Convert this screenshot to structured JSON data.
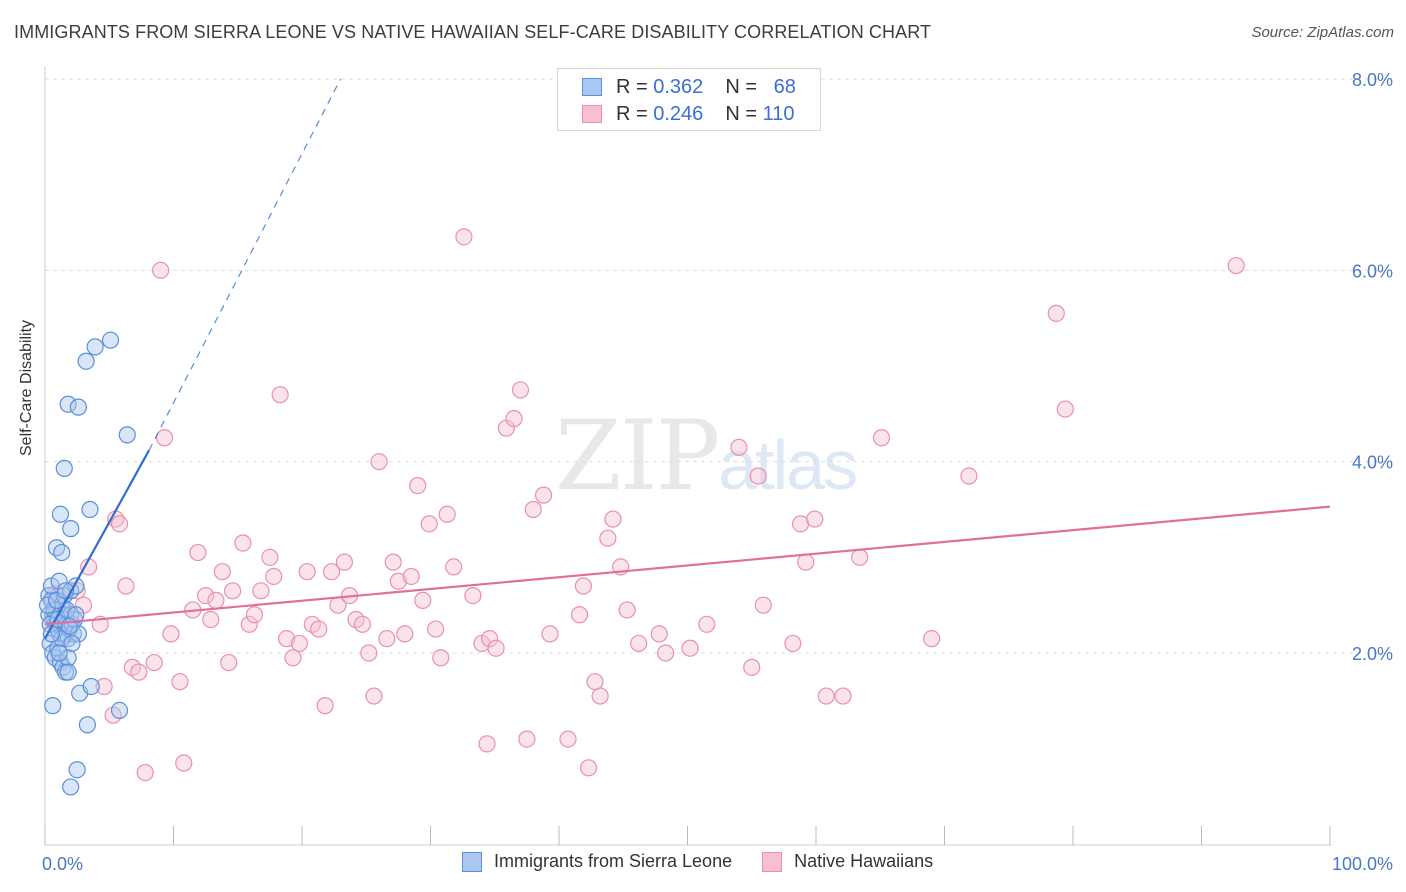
{
  "title": "IMMIGRANTS FROM SIERRA LEONE VS NATIVE HAWAIIAN SELF-CARE DISABILITY CORRELATION CHART",
  "source": "Source: ZipAtlas.com",
  "watermark": {
    "zip": "ZIP",
    "atlas": "atlas"
  },
  "legend_top": [
    {
      "r_label": "R =",
      "r_value": "0.362",
      "n_label": "N =",
      "n_value": "68"
    },
    {
      "r_label": "R =",
      "r_value": "0.246",
      "n_label": "N =",
      "n_value": "110"
    }
  ],
  "legend_bottom": [
    "Immigrants from Sierra Leone",
    "Native Hawaiians"
  ],
  "colors": {
    "blue_fill": "#aac8f0",
    "blue_stroke": "#5b8fd8",
    "blue_line": "#2f6fd1",
    "pink_fill": "#f6c0d2",
    "pink_stroke": "#e890ad",
    "pink_line": "#e07099",
    "grid": "#dddddd",
    "tick_text": "#4a78c8"
  },
  "chart_data": {
    "type": "scatter",
    "title": "IMMIGRANTS FROM SIERRA LEONE VS NATIVE HAWAIIAN SELF-CARE DISABILITY CORRELATION CHART",
    "xlabel": "",
    "ylabel": "Self-Care Disability",
    "xlim": [
      0,
      100
    ],
    "ylim": [
      0.0,
      8.2
    ],
    "x_ticks": [
      "0.0%",
      "100.0%"
    ],
    "y_ticks": [
      {
        "v": 2.0,
        "label": "2.0%"
      },
      {
        "v": 4.0,
        "label": "4.0%"
      },
      {
        "v": 6.0,
        "label": "6.0%"
      },
      {
        "v": 8.0,
        "label": "8.0%"
      }
    ],
    "series": [
      {
        "name": "Immigrants from Sierra Leone",
        "color": "blue",
        "trend": {
          "x0": 0.0,
          "y0": 2.15,
          "x1": 8.1,
          "y1": 4.12,
          "dash_x1": 23.0,
          "dash_y1": 8.0
        },
        "points": [
          [
            0.3,
            2.6
          ],
          [
            0.5,
            2.55
          ],
          [
            0.6,
            2.4
          ],
          [
            0.7,
            2.35
          ],
          [
            0.8,
            2.3
          ],
          [
            0.9,
            2.45
          ],
          [
            1.0,
            2.25
          ],
          [
            1.1,
            2.2
          ],
          [
            1.2,
            2.3
          ],
          [
            1.3,
            2.5
          ],
          [
            1.4,
            2.35
          ],
          [
            1.5,
            2.4
          ],
          [
            1.6,
            2.2
          ],
          [
            1.7,
            2.3
          ],
          [
            1.8,
            2.15
          ],
          [
            1.9,
            2.25
          ],
          [
            2.0,
            2.4
          ],
          [
            2.1,
            2.3
          ],
          [
            2.2,
            2.2
          ],
          [
            2.3,
            2.35
          ],
          [
            0.4,
            2.1
          ],
          [
            0.6,
            2.0
          ],
          [
            0.8,
            1.95
          ],
          [
            1.0,
            2.05
          ],
          [
            1.2,
            1.9
          ],
          [
            1.4,
            1.85
          ],
          [
            1.6,
            1.8
          ],
          [
            1.8,
            1.95
          ],
          [
            0.5,
            2.7
          ],
          [
            1.1,
            2.75
          ],
          [
            1.5,
            2.6
          ],
          [
            2.0,
            2.65
          ],
          [
            2.4,
            2.7
          ],
          [
            2.6,
            2.2
          ],
          [
            0.9,
            3.1
          ],
          [
            1.3,
            3.05
          ],
          [
            2.0,
            3.3
          ],
          [
            1.2,
            3.45
          ],
          [
            3.5,
            3.5
          ],
          [
            1.5,
            3.93
          ],
          [
            6.4,
            4.28
          ],
          [
            1.8,
            4.6
          ],
          [
            2.6,
            4.57
          ],
          [
            3.2,
            5.05
          ],
          [
            3.9,
            5.2
          ],
          [
            5.1,
            5.27
          ],
          [
            0.6,
            1.45
          ],
          [
            1.8,
            1.8
          ],
          [
            2.7,
            1.58
          ],
          [
            3.3,
            1.25
          ],
          [
            5.8,
            1.4
          ],
          [
            2.5,
            0.78
          ],
          [
            2.0,
            0.6
          ],
          [
            3.6,
            1.65
          ],
          [
            0.3,
            2.4
          ],
          [
            0.4,
            2.3
          ],
          [
            0.7,
            2.45
          ],
          [
            1.0,
            2.35
          ],
          [
            1.3,
            2.15
          ],
          [
            1.7,
            2.45
          ],
          [
            2.1,
            2.1
          ],
          [
            0.2,
            2.5
          ],
          [
            0.9,
            2.55
          ],
          [
            1.6,
            2.65
          ],
          [
            0.5,
            2.2
          ],
          [
            1.1,
            2.0
          ],
          [
            2.4,
            2.4
          ],
          [
            1.9,
            2.28
          ]
        ]
      },
      {
        "name": "Native Hawaiians",
        "color": "pink",
        "trend": {
          "x0": 0.0,
          "y0": 2.3,
          "x1": 100.0,
          "y1": 3.53
        },
        "points": [
          [
            0.5,
            2.55
          ],
          [
            1.0,
            2.6
          ],
          [
            1.5,
            2.45
          ],
          [
            2.5,
            2.65
          ],
          [
            3.0,
            2.5
          ],
          [
            3.4,
            2.9
          ],
          [
            4.3,
            2.3
          ],
          [
            4.6,
            1.65
          ],
          [
            5.3,
            1.35
          ],
          [
            5.5,
            3.4
          ],
          [
            5.8,
            3.35
          ],
          [
            6.3,
            2.7
          ],
          [
            6.8,
            1.85
          ],
          [
            7.3,
            1.8
          ],
          [
            7.8,
            0.75
          ],
          [
            8.5,
            1.9
          ],
          [
            9.0,
            6.0
          ],
          [
            9.3,
            4.25
          ],
          [
            9.8,
            2.2
          ],
          [
            10.5,
            1.7
          ],
          [
            10.8,
            0.85
          ],
          [
            11.5,
            2.45
          ],
          [
            11.9,
            3.05
          ],
          [
            12.5,
            2.6
          ],
          [
            12.9,
            2.35
          ],
          [
            13.3,
            2.55
          ],
          [
            13.8,
            2.85
          ],
          [
            14.3,
            1.9
          ],
          [
            14.6,
            2.65
          ],
          [
            15.4,
            3.15
          ],
          [
            15.9,
            2.3
          ],
          [
            16.3,
            2.4
          ],
          [
            16.8,
            2.65
          ],
          [
            17.5,
            3.0
          ],
          [
            17.8,
            2.8
          ],
          [
            18.3,
            4.7
          ],
          [
            18.8,
            2.15
          ],
          [
            19.3,
            1.95
          ],
          [
            19.8,
            2.1
          ],
          [
            20.4,
            2.85
          ],
          [
            20.8,
            2.3
          ],
          [
            21.3,
            2.25
          ],
          [
            21.8,
            1.45
          ],
          [
            22.3,
            2.85
          ],
          [
            22.8,
            2.5
          ],
          [
            23.3,
            2.95
          ],
          [
            23.7,
            2.6
          ],
          [
            24.2,
            2.35
          ],
          [
            24.7,
            2.3
          ],
          [
            25.2,
            2.0
          ],
          [
            25.6,
            1.55
          ],
          [
            26.0,
            4.0
          ],
          [
            26.6,
            2.15
          ],
          [
            27.1,
            2.95
          ],
          [
            27.5,
            2.75
          ],
          [
            28.0,
            2.2
          ],
          [
            28.5,
            2.8
          ],
          [
            29.0,
            3.75
          ],
          [
            29.4,
            2.55
          ],
          [
            29.9,
            3.35
          ],
          [
            30.4,
            2.25
          ],
          [
            30.8,
            1.95
          ],
          [
            31.3,
            3.45
          ],
          [
            31.8,
            2.9
          ],
          [
            32.6,
            6.35
          ],
          [
            33.3,
            2.6
          ],
          [
            34.0,
            2.1
          ],
          [
            34.6,
            2.15
          ],
          [
            35.1,
            2.05
          ],
          [
            34.4,
            1.05
          ],
          [
            35.9,
            4.35
          ],
          [
            36.5,
            4.45
          ],
          [
            37.0,
            4.75
          ],
          [
            37.5,
            1.1
          ],
          [
            38.0,
            3.5
          ],
          [
            38.8,
            3.65
          ],
          [
            39.3,
            2.2
          ],
          [
            40.7,
            1.1
          ],
          [
            41.6,
            2.4
          ],
          [
            41.9,
            2.7
          ],
          [
            42.3,
            0.8
          ],
          [
            42.8,
            1.7
          ],
          [
            43.2,
            1.55
          ],
          [
            43.8,
            3.2
          ],
          [
            44.2,
            3.4
          ],
          [
            44.8,
            2.9
          ],
          [
            45.3,
            2.45
          ],
          [
            46.2,
            2.1
          ],
          [
            47.8,
            2.2
          ],
          [
            48.3,
            2.0
          ],
          [
            50.2,
            2.05
          ],
          [
            51.5,
            2.3
          ],
          [
            54.0,
            4.15
          ],
          [
            55.0,
            1.85
          ],
          [
            55.5,
            3.85
          ],
          [
            55.9,
            2.5
          ],
          [
            58.2,
            2.1
          ],
          [
            58.8,
            3.35
          ],
          [
            59.2,
            2.95
          ],
          [
            59.9,
            3.4
          ],
          [
            60.8,
            1.55
          ],
          [
            62.1,
            1.55
          ],
          [
            63.4,
            3.0
          ],
          [
            65.1,
            4.25
          ],
          [
            69.0,
            2.15
          ],
          [
            71.9,
            3.85
          ],
          [
            78.7,
            5.55
          ],
          [
            79.4,
            4.55
          ],
          [
            92.7,
            6.05
          ],
          [
            0.8,
            2.62
          ]
        ]
      }
    ]
  }
}
